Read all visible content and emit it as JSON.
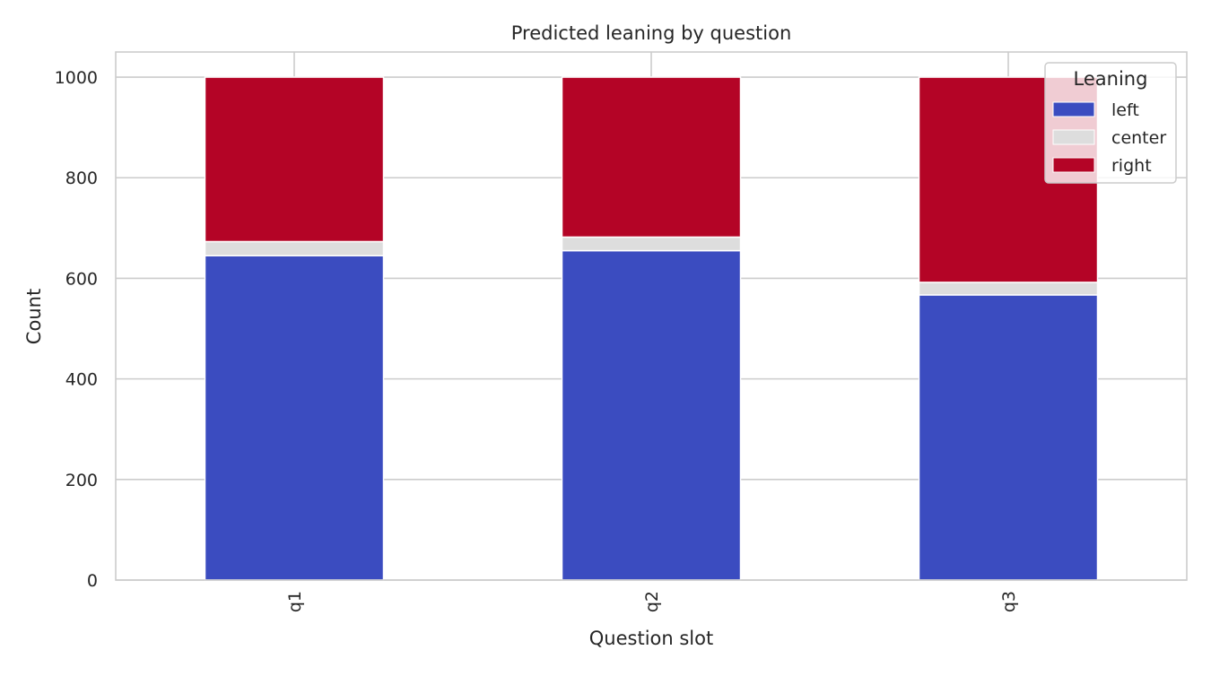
{
  "chart_data": {
    "type": "bar",
    "stacked": true,
    "title": "Predicted leaning by question",
    "xlabel": "Question slot",
    "ylabel": "Count",
    "categories": [
      "q1",
      "q2",
      "q3"
    ],
    "series": [
      {
        "name": "left",
        "color": "#3b4cc0",
        "values": [
          645,
          655,
          567
        ]
      },
      {
        "name": "center",
        "color": "#dddddd",
        "values": [
          28,
          27,
          25
        ]
      },
      {
        "name": "right",
        "color": "#b40426",
        "values": [
          327,
          318,
          408
        ]
      }
    ],
    "ylim": [
      0,
      1050
    ],
    "yticks": [
      0,
      200,
      400,
      600,
      800,
      1000
    ],
    "grid": true,
    "legend": {
      "title": "Leaning",
      "placement": "top-right"
    }
  }
}
